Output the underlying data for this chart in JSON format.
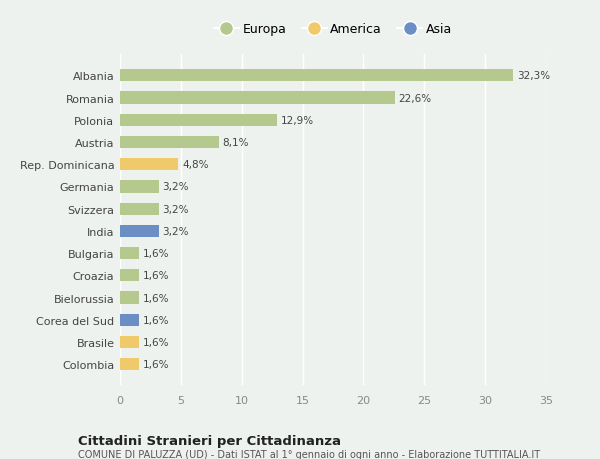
{
  "categories": [
    "Albania",
    "Romania",
    "Polonia",
    "Austria",
    "Rep. Dominicana",
    "Germania",
    "Svizzera",
    "India",
    "Bulgaria",
    "Croazia",
    "Bielorussia",
    "Corea del Sud",
    "Brasile",
    "Colombia"
  ],
  "values": [
    32.3,
    22.6,
    12.9,
    8.1,
    4.8,
    3.2,
    3.2,
    3.2,
    1.6,
    1.6,
    1.6,
    1.6,
    1.6,
    1.6
  ],
  "labels": [
    "32,3%",
    "22,6%",
    "12,9%",
    "8,1%",
    "4,8%",
    "3,2%",
    "3,2%",
    "3,2%",
    "1,6%",
    "1,6%",
    "1,6%",
    "1,6%",
    "1,6%",
    "1,6%"
  ],
  "continent": [
    "Europa",
    "Europa",
    "Europa",
    "Europa",
    "America",
    "Europa",
    "Europa",
    "Asia",
    "Europa",
    "Europa",
    "Europa",
    "Asia",
    "America",
    "America"
  ],
  "color_europa": "#b5c98e",
  "color_america": "#f0c96a",
  "color_asia": "#6b8fc4",
  "background_color": "#eef2ee",
  "title": "Cittadini Stranieri per Cittadinanza",
  "subtitle": "COMUNE DI PALUZZA (UD) - Dati ISTAT al 1° gennaio di ogni anno - Elaborazione TUTTITALIA.IT",
  "xlim": [
    0,
    35
  ],
  "xticks": [
    0,
    5,
    10,
    15,
    20,
    25,
    30,
    35
  ]
}
